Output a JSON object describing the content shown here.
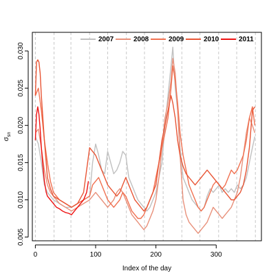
{
  "chart_data": {
    "type": "line",
    "title": "",
    "xlabel": "Index of the day",
    "ylabel_main": "σ",
    "ylabel_sub": "sn",
    "xlim": [
      -5,
      375
    ],
    "ylim": [
      0.0045,
      0.0325
    ],
    "x_ticks": [
      0,
      100,
      200,
      300
    ],
    "x_tick_labels": [
      "0",
      "100",
      "200",
      "300"
    ],
    "y_ticks": [
      0.005,
      0.01,
      0.015,
      0.02,
      0.025,
      0.03
    ],
    "y_tick_labels": [
      "0.005",
      "0.010",
      "0.015",
      "0.020",
      "0.025",
      "0.030"
    ],
    "vertical_guides": [
      0,
      31,
      59,
      90,
      120,
      151,
      181,
      212,
      243,
      273,
      304,
      334,
      365
    ],
    "grid": false,
    "legend_position": "top-right",
    "series": [
      {
        "name": "2007",
        "color": "#c0c0c0",
        "x": [
          0,
          5,
          10,
          15,
          20,
          25,
          30,
          40,
          50,
          60,
          70,
          80,
          90,
          95,
          100,
          105,
          110,
          115,
          120,
          125,
          130,
          135,
          140,
          145,
          150,
          155,
          160,
          165,
          170,
          175,
          180,
          185,
          190,
          195,
          200,
          205,
          210,
          215,
          220,
          225,
          228,
          232,
          236,
          240,
          245,
          250,
          255,
          260,
          265,
          270,
          275,
          280,
          285,
          290,
          295,
          300,
          305,
          310,
          315,
          320,
          325,
          330,
          335,
          340,
          345,
          350,
          355,
          360,
          364
        ],
        "values": [
          0.0185,
          0.0175,
          0.015,
          0.012,
          0.011,
          0.0105,
          0.01,
          0.0095,
          0.009,
          0.009,
          0.0095,
          0.01,
          0.0105,
          0.015,
          0.0175,
          0.016,
          0.014,
          0.0135,
          0.0165,
          0.015,
          0.0135,
          0.014,
          0.015,
          0.0165,
          0.016,
          0.013,
          0.012,
          0.011,
          0.01,
          0.0095,
          0.009,
          0.0085,
          0.009,
          0.01,
          0.011,
          0.013,
          0.015,
          0.02,
          0.024,
          0.028,
          0.0305,
          0.025,
          0.022,
          0.017,
          0.013,
          0.012,
          0.011,
          0.01,
          0.0095,
          0.009,
          0.0085,
          0.009,
          0.0105,
          0.0115,
          0.011,
          0.0115,
          0.012,
          0.011,
          0.0115,
          0.011,
          0.0115,
          0.011,
          0.012,
          0.0115,
          0.012,
          0.013,
          0.015,
          0.017,
          0.0185
        ]
      },
      {
        "name": "2008",
        "color": "#e8907a",
        "x": [
          0,
          5,
          10,
          15,
          20,
          25,
          30,
          40,
          50,
          60,
          70,
          80,
          90,
          95,
          100,
          105,
          110,
          115,
          120,
          125,
          130,
          135,
          140,
          145,
          150,
          155,
          160,
          165,
          170,
          175,
          180,
          185,
          190,
          195,
          200,
          205,
          210,
          215,
          220,
          225,
          228,
          232,
          236,
          240,
          245,
          250,
          255,
          260,
          265,
          270,
          275,
          280,
          285,
          290,
          295,
          300,
          305,
          310,
          315,
          320,
          325,
          330,
          335,
          340,
          345,
          350,
          355,
          360,
          364
        ],
        "values": [
          0.019,
          0.0195,
          0.017,
          0.014,
          0.012,
          0.011,
          0.0105,
          0.0095,
          0.009,
          0.0085,
          0.009,
          0.0095,
          0.01,
          0.0105,
          0.011,
          0.0105,
          0.01,
          0.0095,
          0.009,
          0.0095,
          0.01,
          0.011,
          0.0115,
          0.011,
          0.01,
          0.009,
          0.008,
          0.0075,
          0.007,
          0.0065,
          0.006,
          0.0065,
          0.0075,
          0.0085,
          0.01,
          0.013,
          0.017,
          0.021,
          0.023,
          0.026,
          0.029,
          0.027,
          0.022,
          0.016,
          0.01,
          0.008,
          0.007,
          0.0065,
          0.006,
          0.0055,
          0.006,
          0.0065,
          0.007,
          0.008,
          0.009,
          0.0085,
          0.008,
          0.0075,
          0.008,
          0.0085,
          0.009,
          0.01,
          0.011,
          0.013,
          0.016,
          0.019,
          0.021,
          0.02,
          0.019
        ]
      },
      {
        "name": "2009",
        "color": "#f07050",
        "x": [
          0,
          5,
          10,
          15,
          20,
          25,
          30,
          40,
          50,
          60,
          70,
          80,
          90,
          95,
          100,
          105,
          110,
          115,
          120,
          125,
          130,
          135,
          140,
          145,
          150,
          155,
          160,
          165,
          170,
          175,
          180,
          185,
          190,
          195,
          200,
          205,
          210,
          215,
          220,
          225,
          228,
          232,
          236,
          240,
          245,
          250,
          255,
          260,
          265,
          270,
          275,
          280,
          285,
          290,
          295,
          300,
          305,
          310,
          315,
          320,
          325,
          330,
          335,
          340,
          345,
          350,
          355,
          360,
          364
        ],
        "values": [
          0.024,
          0.025,
          0.022,
          0.018,
          0.015,
          0.0125,
          0.011,
          0.01,
          0.0095,
          0.009,
          0.0095,
          0.01,
          0.0105,
          0.012,
          0.0125,
          0.013,
          0.012,
          0.011,
          0.01,
          0.0095,
          0.009,
          0.0095,
          0.01,
          0.011,
          0.0105,
          0.0095,
          0.0085,
          0.008,
          0.0075,
          0.0075,
          0.008,
          0.009,
          0.01,
          0.011,
          0.013,
          0.015,
          0.017,
          0.019,
          0.021,
          0.025,
          0.028,
          0.026,
          0.023,
          0.019,
          0.016,
          0.014,
          0.012,
          0.011,
          0.01,
          0.009,
          0.0085,
          0.009,
          0.01,
          0.011,
          0.012,
          0.0125,
          0.012,
          0.0115,
          0.012,
          0.013,
          0.014,
          0.0135,
          0.014,
          0.015,
          0.016,
          0.018,
          0.021,
          0.0225,
          0.02
        ]
      },
      {
        "name": "2010",
        "color": "#e85535",
        "x": [
          0,
          2,
          4,
          6,
          8,
          10,
          15,
          20,
          25,
          30,
          40,
          50,
          60,
          70,
          80,
          85,
          90,
          95,
          100,
          105,
          110,
          115,
          120,
          125,
          130,
          135,
          140,
          145,
          150,
          155,
          160,
          165,
          170,
          175,
          180,
          185,
          190,
          195,
          200,
          205,
          210,
          215,
          220,
          225,
          228,
          232,
          236,
          240,
          245,
          250,
          255,
          260,
          265,
          270,
          275,
          280,
          285,
          290,
          295,
          300,
          305,
          310,
          315,
          320,
          325,
          330,
          335,
          340,
          345,
          350,
          355,
          360,
          364
        ],
        "values": [
          0.024,
          0.0285,
          0.0288,
          0.0285,
          0.027,
          0.024,
          0.018,
          0.013,
          0.0115,
          0.0105,
          0.01,
          0.0095,
          0.009,
          0.0095,
          0.011,
          0.014,
          0.017,
          0.0165,
          0.016,
          0.015,
          0.014,
          0.013,
          0.012,
          0.0115,
          0.011,
          0.0105,
          0.011,
          0.012,
          0.013,
          0.012,
          0.011,
          0.01,
          0.0095,
          0.009,
          0.0085,
          0.009,
          0.01,
          0.011,
          0.012,
          0.015,
          0.018,
          0.02,
          0.022,
          0.024,
          0.023,
          0.021,
          0.018,
          0.016,
          0.0145,
          0.0135,
          0.013,
          0.0125,
          0.012,
          0.0125,
          0.013,
          0.0135,
          0.014,
          0.0135,
          0.013,
          0.0125,
          0.012,
          0.0115,
          0.011,
          0.0105,
          0.01,
          0.01,
          0.0105,
          0.011,
          0.012,
          0.014,
          0.017,
          0.022,
          0.0225
        ]
      },
      {
        "name": "2011",
        "color": "#ee1111",
        "x": [
          0,
          2,
          4,
          6,
          8,
          10,
          12,
          15,
          18,
          20,
          25,
          30,
          35,
          40,
          45,
          50,
          55,
          60,
          65,
          70,
          75,
          80,
          85,
          88
        ],
        "values": [
          0.018,
          0.0215,
          0.0225,
          0.0215,
          0.0195,
          0.017,
          0.015,
          0.0125,
          0.011,
          0.0105,
          0.01,
          0.0095,
          0.009,
          0.0088,
          0.0085,
          0.0083,
          0.0082,
          0.008,
          0.0085,
          0.009,
          0.0095,
          0.01,
          0.011,
          0.0125
        ]
      }
    ]
  }
}
